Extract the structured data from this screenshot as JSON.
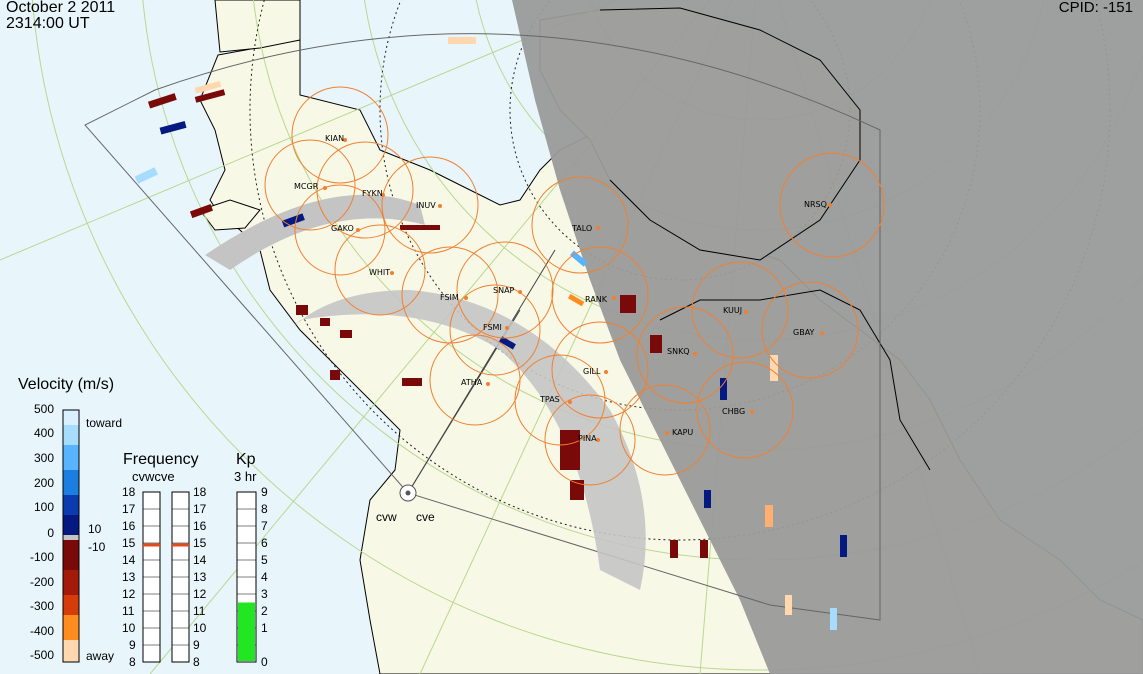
{
  "header": {
    "date": "October  2 2011",
    "time": "2314:00 UT",
    "cpid": "CPID:  -151"
  },
  "velocity_scale": {
    "title": "Velocity (m/s)",
    "ticks": [
      "500",
      "400",
      "300",
      "200",
      "100",
      "0",
      "-100",
      "-200",
      "-300",
      "-400",
      "-500"
    ],
    "toward_label": "toward",
    "away_label": "away",
    "threshold_pos": "10",
    "threshold_neg": "-10",
    "colors": [
      "#d8f0ff",
      "#a8dcff",
      "#58b4ff",
      "#1a7fe0",
      "#0a3cb0",
      "#051a80",
      "#7a0a0a",
      "#a41a0a",
      "#d43c0a",
      "#ff8c1e",
      "#ffd8b0"
    ]
  },
  "frequency_panel": {
    "title": "Frequency",
    "subtitle": "cvwcve",
    "left_ticks": [
      "18",
      "17",
      "16",
      "15",
      "14",
      "13",
      "12",
      "11",
      "10",
      "9",
      "8"
    ],
    "right_ticks": [
      "18",
      "17",
      "16",
      "15",
      "14",
      "13",
      "12",
      "11",
      "10",
      "9",
      "8"
    ],
    "cvw_mhz": 15,
    "cve_mhz": 15,
    "marker_color": "#e04a1c"
  },
  "kp_panel": {
    "title": "Kp",
    "subtitle": "3 hr",
    "ticks": [
      "9",
      "8",
      "7",
      "6",
      "5",
      "4",
      "3",
      "2",
      "1",
      "0"
    ],
    "kp_value": 3,
    "bar_color": "#22e622"
  },
  "radars": {
    "west": "cvw",
    "east": "cve"
  },
  "stations": [
    {
      "code": "KIAN"
    },
    {
      "code": "MCGR"
    },
    {
      "code": "FYKN"
    },
    {
      "code": "INUV"
    },
    {
      "code": "GAKO"
    },
    {
      "code": "TALO"
    },
    {
      "code": "NRSQ"
    },
    {
      "code": "WHIT"
    },
    {
      "code": "FSIM"
    },
    {
      "code": "SNAP"
    },
    {
      "code": "RANK"
    },
    {
      "code": "FSMI"
    },
    {
      "code": "KUUJ"
    },
    {
      "code": "GBAY"
    },
    {
      "code": "SNKQ"
    },
    {
      "code": "ATHA"
    },
    {
      "code": "GILL"
    },
    {
      "code": "TPAS"
    },
    {
      "code": "CHBG"
    },
    {
      "code": "KAPU"
    },
    {
      "code": "PINA"
    }
  ],
  "colors": {
    "ocean": "#e8f6fc",
    "land": "#f8f8e6",
    "night": "#9a9a9a",
    "ground_scatter": "#c4c4c4",
    "fov_ring": "#f08030",
    "grid_line": "#b8d890"
  }
}
